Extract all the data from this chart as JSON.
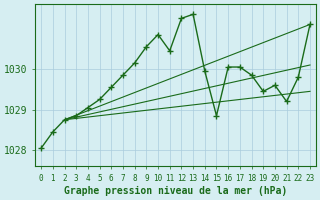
{
  "title": "Graphe pression niveau de la mer (hPa)",
  "bg_color": "#d6eef2",
  "grid_color": "#aaccdd",
  "line_color": "#1a6b1a",
  "x_labels": [
    "0",
    "1",
    "2",
    "3",
    "4",
    "5",
    "6",
    "7",
    "8",
    "9",
    "10",
    "11",
    "12",
    "13",
    "14",
    "15",
    "16",
    "17",
    "18",
    "19",
    "20",
    "21",
    "22",
    "23"
  ],
  "ylim": [
    1027.6,
    1031.6
  ],
  "yticks": [
    1028,
    1029,
    1030
  ],
  "main_line": {
    "x": [
      0,
      1,
      2,
      3,
      4,
      5,
      6,
      7,
      8,
      9,
      10,
      11,
      12,
      13,
      14,
      15,
      16,
      17,
      18,
      19,
      20,
      21,
      22,
      23
    ],
    "y": [
      1028.05,
      1028.45,
      1028.75,
      1028.85,
      1029.05,
      1029.25,
      1029.55,
      1029.85,
      1030.15,
      1030.55,
      1030.85,
      1030.45,
      1031.25,
      1031.35,
      1029.95,
      1028.85,
      1030.05,
      1030.05,
      1029.85,
      1029.45,
      1029.6,
      1029.2,
      1029.8,
      1031.1
    ]
  },
  "forecast_lines": [
    {
      "x": [
        2,
        23
      ],
      "y": [
        1028.75,
        1031.1
      ]
    },
    {
      "x": [
        2,
        23
      ],
      "y": [
        1028.75,
        1030.1
      ]
    },
    {
      "x": [
        2,
        23
      ],
      "y": [
        1028.75,
        1029.45
      ]
    }
  ]
}
